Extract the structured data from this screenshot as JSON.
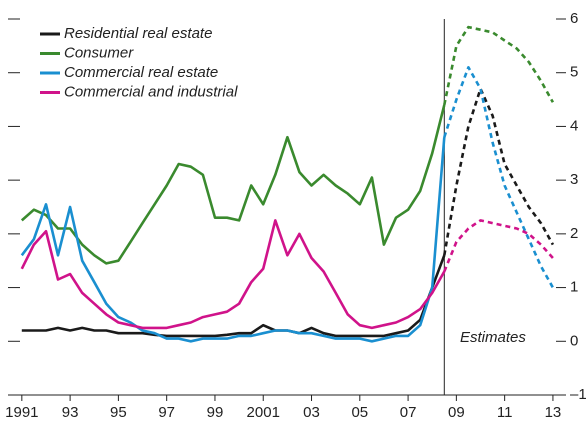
{
  "chart_data": {
    "type": "line",
    "annotation": "Estimates",
    "vline": 2008.5,
    "x": [
      1991,
      1991.5,
      1992,
      1992.5,
      1993,
      1993.5,
      1994,
      1994.5,
      1995,
      1995.5,
      1996,
      1996.5,
      1997,
      1997.5,
      1998,
      1998.5,
      1999,
      1999.5,
      2000,
      2000.5,
      2001,
      2001.5,
      2002,
      2002.5,
      2003,
      2003.5,
      2004,
      2004.5,
      2005,
      2005.5,
      2006,
      2006.5,
      2007,
      2007.5,
      2008,
      2008.5,
      2009,
      2009.5,
      2010,
      2010.5,
      2011,
      2011.5,
      2012,
      2012.5,
      2013
    ],
    "series": [
      {
        "name": "Residential real estate",
        "color": "#1a1a1a",
        "values": [
          0.2,
          0.2,
          0.2,
          0.25,
          0.2,
          0.25,
          0.2,
          0.2,
          0.15,
          0.15,
          0.15,
          0.12,
          0.1,
          0.1,
          0.1,
          0.1,
          0.1,
          0.12,
          0.15,
          0.15,
          0.3,
          0.2,
          0.2,
          0.15,
          0.25,
          0.15,
          0.1,
          0.1,
          0.1,
          0.1,
          0.1,
          0.15,
          0.2,
          0.4,
          1.0,
          1.6,
          2.9,
          4.0,
          4.7,
          4.2,
          3.3,
          2.9,
          2.5,
          2.2,
          1.8
        ]
      },
      {
        "name": "Consumer",
        "color": "#3a8a2e",
        "values": [
          2.25,
          2.45,
          2.35,
          2.1,
          2.1,
          1.8,
          1.6,
          1.45,
          1.5,
          1.85,
          2.2,
          2.55,
          2.9,
          3.3,
          3.25,
          3.1,
          2.3,
          2.3,
          2.25,
          2.9,
          2.55,
          3.1,
          3.8,
          3.15,
          2.9,
          3.1,
          2.9,
          2.75,
          2.55,
          3.05,
          1.8,
          2.3,
          2.45,
          2.8,
          3.5,
          4.4,
          5.5,
          5.85,
          5.8,
          5.75,
          5.6,
          5.45,
          5.2,
          4.85,
          4.45
        ]
      },
      {
        "name": "Commercial real estate",
        "color": "#1a8fd0",
        "values": [
          1.6,
          1.9,
          2.55,
          1.6,
          2.5,
          1.5,
          1.1,
          0.7,
          0.45,
          0.35,
          0.2,
          0.15,
          0.05,
          0.05,
          0.0,
          0.05,
          0.05,
          0.05,
          0.1,
          0.1,
          0.15,
          0.2,
          0.2,
          0.15,
          0.15,
          0.1,
          0.05,
          0.05,
          0.05,
          0.0,
          0.05,
          0.1,
          0.1,
          0.3,
          1.0,
          3.8,
          4.5,
          5.1,
          4.7,
          3.7,
          2.9,
          2.4,
          1.9,
          1.4,
          1.0
        ]
      },
      {
        "name": "Commercial and industrial",
        "color": "#d0138a",
        "values": [
          1.35,
          1.8,
          2.05,
          1.15,
          1.25,
          0.9,
          0.7,
          0.5,
          0.35,
          0.3,
          0.25,
          0.25,
          0.25,
          0.3,
          0.35,
          0.45,
          0.5,
          0.55,
          0.7,
          1.1,
          1.35,
          2.25,
          1.6,
          2.0,
          1.55,
          1.3,
          0.9,
          0.5,
          0.3,
          0.25,
          0.3,
          0.35,
          0.45,
          0.6,
          0.9,
          1.3,
          1.85,
          2.1,
          2.25,
          2.2,
          2.15,
          2.1,
          2.0,
          1.8,
          1.55
        ]
      }
    ],
    "xlim": [
      1990.8,
      2013.5
    ],
    "xticks": [
      {
        "value": 1991,
        "label": "1991"
      },
      {
        "value": 1993,
        "label": "93"
      },
      {
        "value": 1995,
        "label": "95"
      },
      {
        "value": 1997,
        "label": "97"
      },
      {
        "value": 1999,
        "label": "99"
      },
      {
        "value": 2001,
        "label": "2001"
      },
      {
        "value": 2003,
        "label": "03"
      },
      {
        "value": 2005,
        "label": "05"
      },
      {
        "value": 2007,
        "label": "07"
      },
      {
        "value": 2009,
        "label": "09"
      },
      {
        "value": 2011,
        "label": "11"
      },
      {
        "value": 2013,
        "label": "13"
      }
    ],
    "ylim": [
      -1,
      6
    ],
    "yticks": [
      {
        "value": -1,
        "label": "–1"
      },
      0,
      1,
      2,
      3,
      4,
      5,
      6
    ],
    "legend": "upper left"
  }
}
